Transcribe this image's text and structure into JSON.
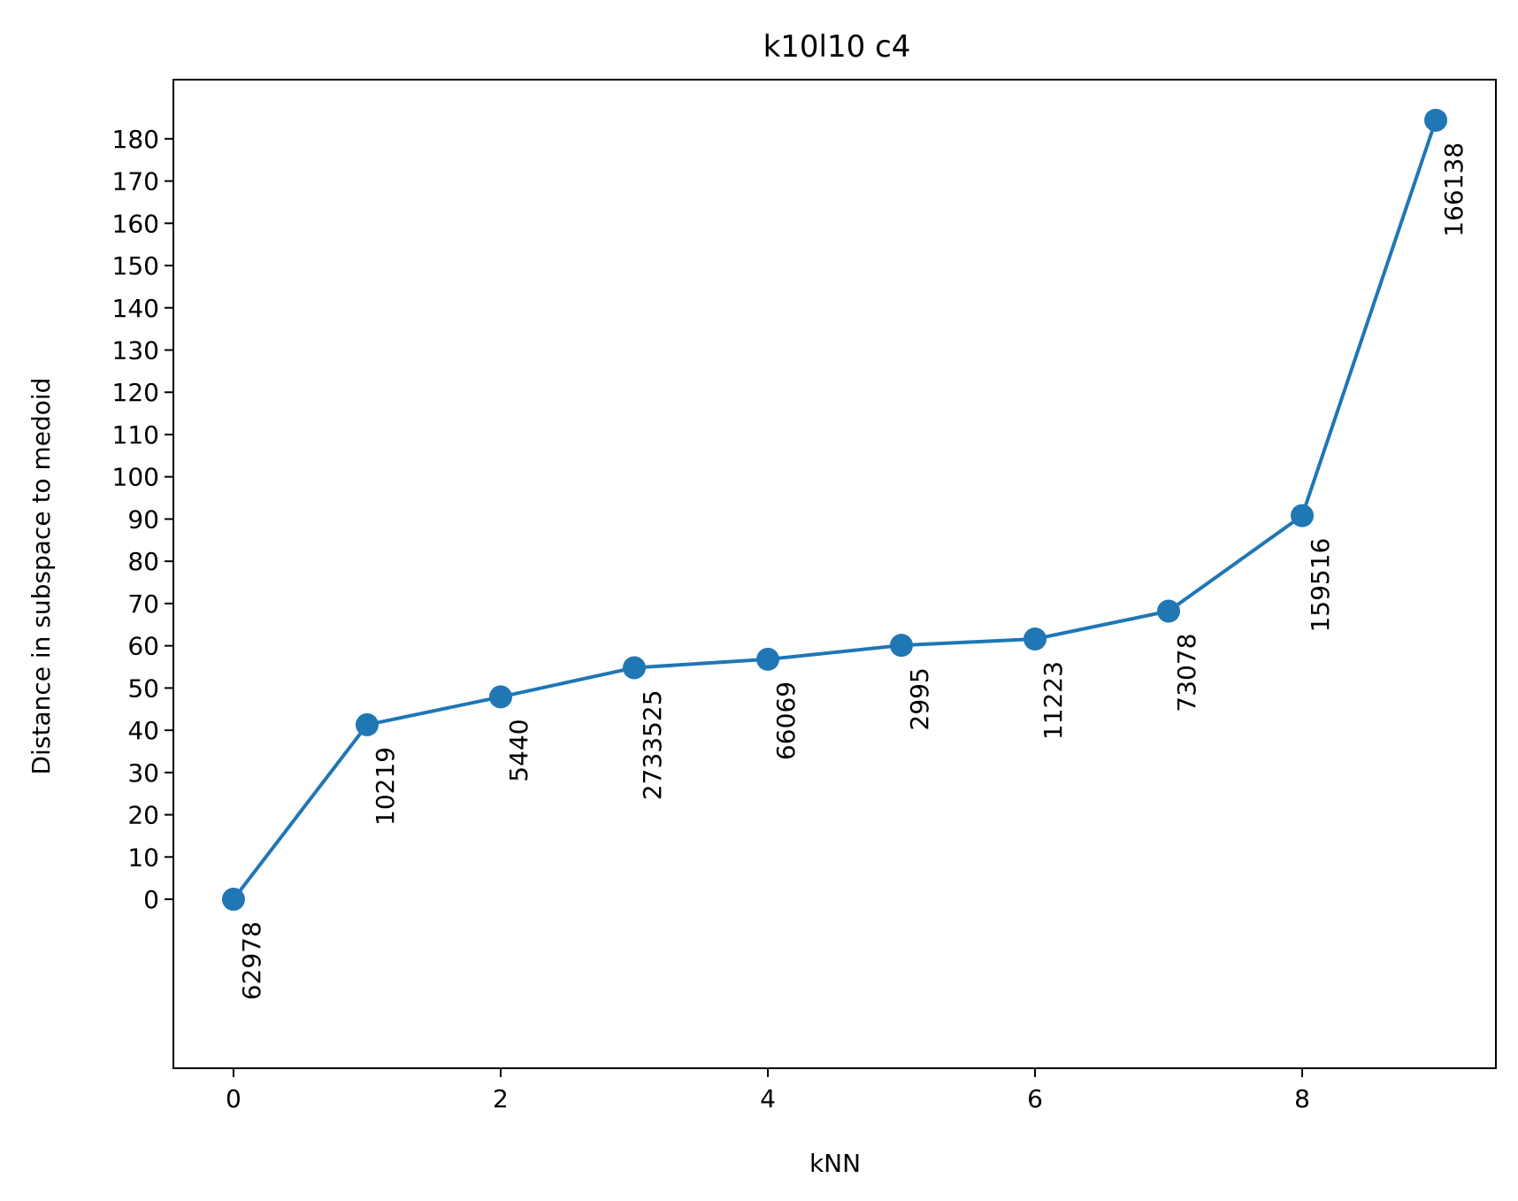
{
  "chart_data": {
    "type": "line",
    "title": "k10l10 c4",
    "xlabel": "kNN",
    "ylabel": "Distance in subspace to medoid",
    "x": [
      0,
      1,
      2,
      3,
      4,
      5,
      6,
      7,
      8,
      9
    ],
    "series": [
      {
        "values": [
          0,
          41.3,
          47.9,
          54.8,
          56.8,
          60.1,
          61.6,
          68.2,
          90.8,
          184.4
        ],
        "point_labels": [
          "62978",
          "10219",
          "5440",
          "2733525",
          "66069",
          "2995",
          "11223",
          "73078",
          "159516",
          "166138"
        ],
        "color": "#1f77b4"
      }
    ],
    "xlim": [
      -0.45,
      9.45
    ],
    "ylim": [
      -40,
      194
    ],
    "xticks": [
      0,
      2,
      4,
      6,
      8
    ],
    "yticks": [
      0,
      10,
      20,
      30,
      40,
      50,
      60,
      70,
      80,
      90,
      100,
      110,
      120,
      130,
      140,
      150,
      160,
      170,
      180
    ],
    "grid": false,
    "legend": "none"
  }
}
